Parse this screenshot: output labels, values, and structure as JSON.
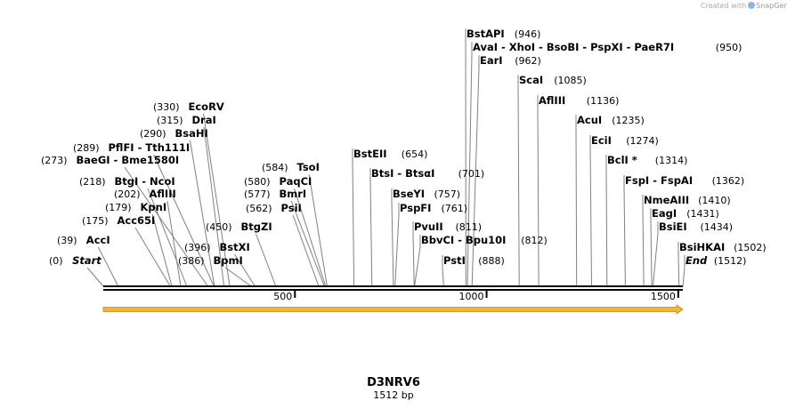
{
  "credit": {
    "prefix": "Created with",
    "brand": "SnapGene"
  },
  "plasmid": {
    "name": "D3NRV6",
    "length_label": "1512 bp",
    "length": 1512
  },
  "feature": {
    "color": "#f0b43c",
    "stroke": "#c48a16"
  },
  "axis": {
    "ticks": [
      {
        "value": 500,
        "label": "500"
      },
      {
        "value": 1000,
        "label": "1000"
      },
      {
        "value": 1500,
        "label": "1500"
      }
    ]
  },
  "sites": [
    {
      "name": "Start",
      "pos": 0,
      "pos_label": "(0)",
      "italic": true
    },
    {
      "name": "AccI",
      "pos": 39,
      "pos_label": "(39)"
    },
    {
      "name": "Acc65I",
      "pos": 175,
      "pos_label": "(175)"
    },
    {
      "name": "KpnI",
      "pos": 179,
      "pos_label": "(179)"
    },
    {
      "name": "AflIII",
      "pos": 202,
      "pos_label": "(202)"
    },
    {
      "name": "BtgI - NcoI",
      "pos": 218,
      "pos_label": "(218)"
    },
    {
      "name": "BaeGI - Bme1580I",
      "pos": 273,
      "pos_label": "(273)"
    },
    {
      "name": "PflFI - Tth111I",
      "pos": 289,
      "pos_label": "(289)"
    },
    {
      "name": "BsaHI",
      "pos": 290,
      "pos_label": "(290)"
    },
    {
      "name": "DraI",
      "pos": 315,
      "pos_label": "(315)"
    },
    {
      "name": "EcoRV",
      "pos": 330,
      "pos_label": "(330)"
    },
    {
      "name": "BpmI",
      "pos": 386,
      "pos_label": "(386)"
    },
    {
      "name": "BstXI",
      "pos": 396,
      "pos_label": "(396)"
    },
    {
      "name": "BtgZI",
      "pos": 450,
      "pos_label": "(450)"
    },
    {
      "name": "PsiI",
      "pos": 562,
      "pos_label": "(562)"
    },
    {
      "name": "BmrI",
      "pos": 577,
      "pos_label": "(577)"
    },
    {
      "name": "PaqCI",
      "pos": 580,
      "pos_label": "(580)"
    },
    {
      "name": "TsoI",
      "pos": 584,
      "pos_label": "(584)"
    },
    {
      "name": "BstEII",
      "pos": 654,
      "pos_label": "(654)"
    },
    {
      "name": "BtsI - BtsαI",
      "pos": 701,
      "pos_label": "(701)"
    },
    {
      "name": "BseYI",
      "pos": 757,
      "pos_label": "(757)"
    },
    {
      "name": "PspFI",
      "pos": 761,
      "pos_label": "(761)"
    },
    {
      "name": "PvuII",
      "pos": 811,
      "pos_label": "(811)"
    },
    {
      "name": "BbvCI - Bpu10I",
      "pos": 812,
      "pos_label": "(812)"
    },
    {
      "name": "PstI",
      "pos": 888,
      "pos_label": "(888)"
    },
    {
      "name": "BstAPI",
      "pos": 946,
      "pos_label": "(946)"
    },
    {
      "name": "AvaI - XhoI - BsoBI - PspXI - PaeR7I",
      "pos": 950,
      "pos_label": "(950)"
    },
    {
      "name": "EarI",
      "pos": 962,
      "pos_label": "(962)"
    },
    {
      "name": "ScaI",
      "pos": 1085,
      "pos_label": "(1085)"
    },
    {
      "name": "AflIII",
      "pos": 1136,
      "pos_label": "(1136)"
    },
    {
      "name": "AcuI",
      "pos": 1235,
      "pos_label": "(1235)"
    },
    {
      "name": "EciI",
      "pos": 1274,
      "pos_label": "(1274)"
    },
    {
      "name": "BclI *",
      "pos": 1314,
      "pos_label": "(1314)"
    },
    {
      "name": "FspI - FspAI",
      "pos": 1362,
      "pos_label": "(1362)"
    },
    {
      "name": "NmeAIII",
      "pos": 1410,
      "pos_label": "(1410)"
    },
    {
      "name": "EagI",
      "pos": 1431,
      "pos_label": "(1431)"
    },
    {
      "name": "BsiEI",
      "pos": 1434,
      "pos_label": "(1434)"
    },
    {
      "name": "BsiHKAI",
      "pos": 1502,
      "pos_label": "(1502)"
    },
    {
      "name": "End",
      "pos": 1512,
      "pos_label": "(1512)",
      "italic": true
    }
  ]
}
